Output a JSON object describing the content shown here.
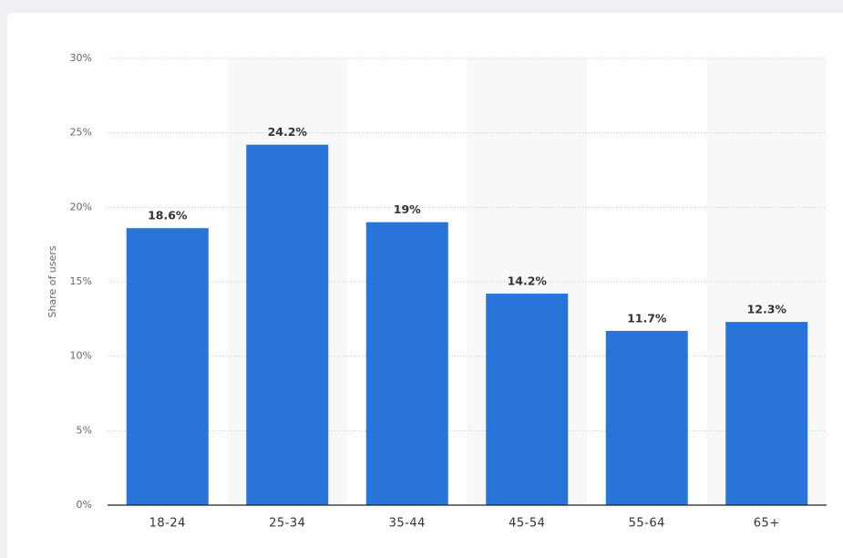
{
  "chart_data": {
    "type": "bar",
    "y_label": "Share of users",
    "categories": [
      "18-24",
      "25-34",
      "35-44",
      "45-54",
      "55-64",
      "65+"
    ],
    "values": [
      18.6,
      24.2,
      19,
      14.2,
      11.7,
      12.3
    ],
    "value_labels": [
      "18.6%",
      "24.2%",
      "19%",
      "14.2%",
      "11.7%",
      "12.3%"
    ],
    "color": "#2874d9",
    "ylim": [
      0,
      30
    ],
    "yticks": [
      {
        "value": 0,
        "label": "0%"
      },
      {
        "value": 5,
        "label": "5%"
      },
      {
        "value": 10,
        "label": "10%"
      },
      {
        "value": 15,
        "label": "15%"
      },
      {
        "value": 20,
        "label": "20%"
      },
      {
        "value": 25,
        "label": "25%"
      },
      {
        "value": 30,
        "label": "30%"
      }
    ],
    "grid": true
  }
}
